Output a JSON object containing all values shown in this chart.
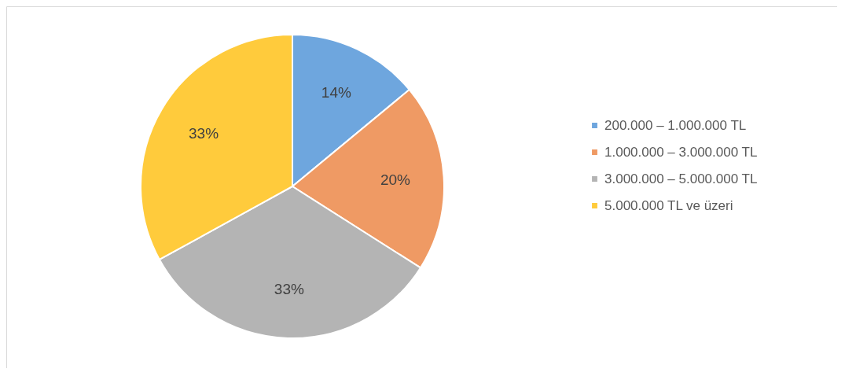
{
  "chart_data": {
    "type": "pie",
    "categories": [
      "200.000 – 1.000.000 TL",
      "1.000.000 – 3.000.000 TL",
      "3.000.000 – 5.000.000 TL",
      "5.000.000 TL ve üzeri"
    ],
    "values": [
      14,
      20,
      33,
      33
    ],
    "colors": [
      "#6ea6de",
      "#ef9a64",
      "#b4b4b4",
      "#ffcb3c"
    ],
    "value_labels": [
      "14%",
      "20%",
      "33%",
      "33%"
    ],
    "legend": "right"
  }
}
